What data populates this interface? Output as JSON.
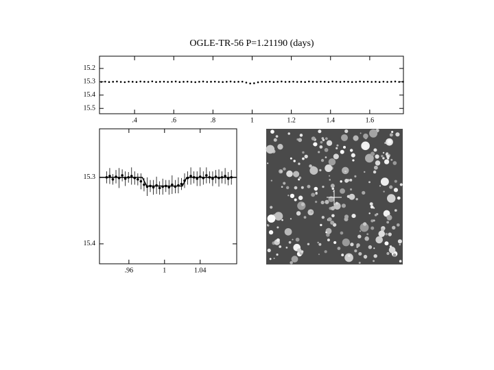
{
  "chart_data": [
    {
      "type": "scatter",
      "title": "OGLE-TR-56  P=1.21190 (days)",
      "x": [
        0.23,
        0.25,
        0.27,
        0.29,
        0.31,
        0.33,
        0.35,
        0.37,
        0.39,
        0.41,
        0.43,
        0.45,
        0.47,
        0.49,
        0.51,
        0.53,
        0.55,
        0.57,
        0.59,
        0.61,
        0.63,
        0.65,
        0.67,
        0.69,
        0.71,
        0.73,
        0.75,
        0.77,
        0.79,
        0.81,
        0.83,
        0.85,
        0.87,
        0.89,
        0.91,
        0.93,
        0.95,
        0.97,
        0.99,
        1.01,
        1.03,
        1.05,
        1.07,
        1.09,
        1.11,
        1.13,
        1.15,
        1.17,
        1.19,
        1.21,
        1.23,
        1.25,
        1.27,
        1.29,
        1.31,
        1.33,
        1.35,
        1.37,
        1.39,
        1.41,
        1.43,
        1.45,
        1.47,
        1.49,
        1.51,
        1.53,
        1.55,
        1.57,
        1.59,
        1.61,
        1.63,
        1.65,
        1.67,
        1.69,
        1.71,
        1.73,
        1.75,
        1.77
      ],
      "values": [
        15.301,
        15.299,
        15.302,
        15.3,
        15.298,
        15.301,
        15.303,
        15.299,
        15.3,
        15.302,
        15.298,
        15.3,
        15.301,
        15.297,
        15.302,
        15.3,
        15.299,
        15.301,
        15.3,
        15.298,
        15.302,
        15.3,
        15.299,
        15.301,
        15.303,
        15.3,
        15.298,
        15.301,
        15.3,
        15.299,
        15.301,
        15.302,
        15.3,
        15.298,
        15.301,
        15.3,
        15.299,
        15.306,
        15.313,
        15.311,
        15.304,
        15.3,
        15.301,
        15.299,
        15.302,
        15.3,
        15.298,
        15.301,
        15.3,
        15.299,
        15.301,
        15.3,
        15.302,
        15.298,
        15.3,
        15.301,
        15.299,
        15.3,
        15.302,
        15.298,
        15.3,
        15.301,
        15.299,
        15.3,
        15.302,
        15.301,
        15.298,
        15.3,
        15.299,
        15.301,
        15.3,
        15.302,
        15.299,
        15.301,
        15.3,
        15.298,
        15.301,
        15.3
      ],
      "xlim": [
        0.221,
        1.772
      ],
      "ylim": [
        15.108,
        15.54
      ],
      "y_inverted": true,
      "xticks": [
        {
          "value": 0.4,
          "label": ".4"
        },
        {
          "value": 0.6,
          "label": ".6"
        },
        {
          "value": 0.8,
          "label": ".8"
        },
        1,
        1.2,
        1.4,
        1.6
      ],
      "yticks": [
        15.2,
        15.3,
        15.4,
        15.5
      ],
      "color": "#000000"
    },
    {
      "type": "scatter",
      "x": [
        0.935,
        0.9385,
        0.942,
        0.9455,
        0.949,
        0.9525,
        0.956,
        0.9595,
        0.963,
        0.9665,
        0.97,
        0.9735,
        0.977,
        0.9805,
        0.984,
        0.9875,
        0.991,
        0.9945,
        0.998,
        1.0015,
        1.005,
        1.0085,
        1.012,
        1.0155,
        1.019,
        1.0225,
        1.026,
        1.0295,
        1.033,
        1.0365,
        1.04,
        1.0435,
        1.047,
        1.0505,
        1.054,
        1.0575,
        1.061,
        1.0645,
        1.068,
        1.0715,
        1.075
      ],
      "values": [
        15.3,
        15.298,
        15.303,
        15.299,
        15.301,
        15.297,
        15.302,
        15.3,
        15.298,
        15.301,
        15.303,
        15.306,
        15.311,
        15.314,
        15.313,
        15.315,
        15.312,
        15.316,
        15.314,
        15.313,
        15.315,
        15.311,
        15.314,
        15.312,
        15.31,
        15.305,
        15.301,
        15.298,
        15.3,
        15.302,
        15.299,
        15.301,
        15.297,
        15.3,
        15.302,
        15.299,
        15.301,
        15.3,
        15.298,
        15.302,
        15.3
      ],
      "errors": [
        0.009,
        0.012,
        0.008,
        0.01,
        0.015,
        0.009,
        0.011,
        0.008,
        0.013,
        0.01,
        0.009,
        0.012,
        0.01,
        0.014,
        0.009,
        0.011,
        0.013,
        0.01,
        0.012,
        0.009,
        0.011,
        0.014,
        0.01,
        0.012,
        0.009,
        0.011,
        0.01,
        0.013,
        0.009,
        0.011,
        0.014,
        0.01,
        0.012,
        0.009,
        0.011,
        0.01,
        0.013,
        0.009,
        0.012,
        0.01,
        0.011
      ],
      "fit": {
        "x": [
          0.927,
          0.975,
          0.98,
          1.02,
          1.025,
          1.081
        ],
        "values": [
          15.3,
          15.3,
          15.313,
          15.313,
          15.3,
          15.3
        ]
      },
      "xlim": [
        0.927,
        1.081
      ],
      "ylim": [
        15.227,
        15.43
      ],
      "y_inverted": true,
      "xticks": [
        {
          "value": 0.96,
          "label": ".96"
        },
        1,
        1.04
      ],
      "yticks": [
        15.3,
        15.4
      ],
      "color": "#000000"
    }
  ]
}
